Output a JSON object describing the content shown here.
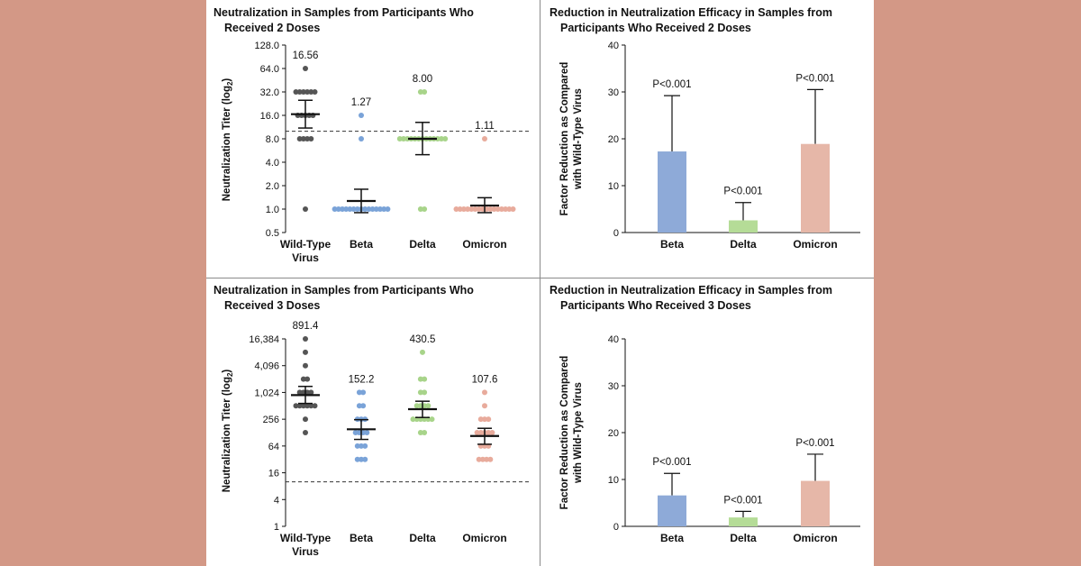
{
  "colors": {
    "wild_type": "#555555",
    "beta": "#7aa3d8",
    "delta": "#a8d48a",
    "omicron": "#e8ab9c",
    "bar_beta": "#8eaad8",
    "bar_delta": "#b5dc97",
    "bar_omicron": "#e6b7a8"
  },
  "chart_data": [
    {
      "type": "scatter",
      "title": [
        "Neutralization in Samples from Participants Who",
        "Received 2 Doses"
      ],
      "ylabel": "Neutralization Titer (log",
      "ylabel_sub": "2",
      "scale": "log2",
      "ylim": [
        0.5,
        128
      ],
      "ytick_values": [
        0.5,
        1,
        2,
        4,
        8,
        16,
        32,
        64,
        128
      ],
      "ytick_labels": [
        "0.5",
        "1.0",
        "2.0",
        "4.0",
        "8.0",
        "16.0",
        "32.0",
        "64.0",
        "128.0"
      ],
      "threshold": 10,
      "categories": [
        [
          "Wild-Type",
          "Virus"
        ],
        [
          "Beta"
        ],
        [
          "Delta"
        ],
        [
          "Omicron"
        ]
      ],
      "series": [
        {
          "key": "wild_type",
          "gmt": 16.56,
          "gmt_label": "16.56",
          "ci": [
            11,
            25
          ],
          "points": [
            64,
            32,
            32,
            32,
            32,
            32,
            32,
            16,
            16,
            16,
            16,
            16,
            8,
            8,
            8,
            8,
            1
          ]
        },
        {
          "key": "beta",
          "gmt": 1.27,
          "gmt_label": "1.27",
          "ci": [
            0.9,
            1.8
          ],
          "points": [
            16,
            8,
            1,
            1,
            1,
            1,
            1,
            1,
            1,
            1,
            1,
            1,
            1,
            1,
            1,
            1,
            1
          ]
        },
        {
          "key": "delta",
          "gmt": 8.0,
          "gmt_label": "8.00",
          "ci": [
            5,
            13
          ],
          "points": [
            32,
            32,
            8,
            8,
            8,
            8,
            8,
            8,
            8,
            8,
            8,
            8,
            8,
            8,
            8,
            1,
            1
          ]
        },
        {
          "key": "omicron",
          "gmt": 1.11,
          "gmt_label": "1.11",
          "ci": [
            0.9,
            1.4
          ],
          "points": [
            8,
            1,
            1,
            1,
            1,
            1,
            1,
            1,
            1,
            1,
            1,
            1,
            1,
            1,
            1,
            1,
            1
          ]
        }
      ]
    },
    {
      "type": "bar",
      "title": [
        "Reduction in Neutralization Efficacy in Samples from",
        "Participants Who Received 2 Doses"
      ],
      "ylabel": [
        "Factor Reduction as Compared",
        "with Wild-Type Virus"
      ],
      "ylim": [
        0,
        40
      ],
      "yticks": [
        0,
        10,
        20,
        30,
        40
      ],
      "categories": [
        "Beta",
        "Delta",
        "Omicron"
      ],
      "series": [
        {
          "key": "beta",
          "value": 17.3,
          "err_upper": 29.2,
          "label": "P<0.001"
        },
        {
          "key": "delta",
          "value": 2.6,
          "err_upper": 6.4,
          "label": "P<0.001"
        },
        {
          "key": "omicron",
          "value": 18.9,
          "err_upper": 30.5,
          "label": "P<0.001"
        }
      ]
    },
    {
      "type": "scatter",
      "title": [
        "Neutralization in Samples from Participants Who",
        "Received 3 Doses"
      ],
      "ylabel": "Neutralization Titer (log",
      "ylabel_sub": "2",
      "scale": "log2",
      "ylim": [
        1,
        16384
      ],
      "ytick_values": [
        1,
        4,
        16,
        64,
        256,
        1024,
        4096,
        16384
      ],
      "ytick_labels": [
        "1",
        "4",
        "16",
        "64",
        "256",
        "1,024",
        "4,096",
        "16,384"
      ],
      "threshold": 10,
      "categories": [
        [
          "Wild-Type",
          "Virus"
        ],
        [
          "Beta"
        ],
        [
          "Delta"
        ],
        [
          "Omicron"
        ]
      ],
      "series": [
        {
          "key": "wild_type",
          "gmt": 891.4,
          "gmt_label": "891.4",
          "ci": [
            580,
            1400
          ],
          "points": [
            16384,
            8192,
            4096,
            2048,
            2048,
            1024,
            1024,
            1024,
            1024,
            512,
            512,
            512,
            512,
            512,
            512,
            256,
            128
          ]
        },
        {
          "key": "beta",
          "gmt": 152.2,
          "gmt_label": "152.2",
          "ci": [
            90,
            250
          ],
          "points": [
            1024,
            1024,
            512,
            512,
            256,
            256,
            256,
            128,
            128,
            128,
            128,
            64,
            64,
            64,
            32,
            32,
            32
          ]
        },
        {
          "key": "delta",
          "gmt": 430.5,
          "gmt_label": "430.5",
          "ci": [
            280,
            650
          ],
          "points": [
            8192,
            2048,
            2048,
            1024,
            1024,
            512,
            512,
            512,
            512,
            256,
            256,
            256,
            256,
            256,
            256,
            128,
            128
          ]
        },
        {
          "key": "omicron",
          "gmt": 107.6,
          "gmt_label": "107.6",
          "ci": [
            70,
            160
          ],
          "points": [
            1024,
            512,
            256,
            256,
            256,
            128,
            128,
            128,
            128,
            128,
            64,
            64,
            64,
            32,
            32,
            32,
            32
          ]
        }
      ]
    },
    {
      "type": "bar",
      "title": [
        "Reduction in Neutralization Efficacy in Samples from",
        "Participants Who Received 3 Doses"
      ],
      "ylabel": [
        "Factor Reduction as Compared",
        "with Wild-Type Virus"
      ],
      "ylim": [
        0,
        40
      ],
      "yticks": [
        0,
        10,
        20,
        30,
        40
      ],
      "categories": [
        "Beta",
        "Delta",
        "Omicron"
      ],
      "series": [
        {
          "key": "beta",
          "value": 6.6,
          "err_upper": 11.3,
          "label": "P<0.001"
        },
        {
          "key": "delta",
          "value": 1.9,
          "err_upper": 3.2,
          "label": "P<0.001"
        },
        {
          "key": "omicron",
          "value": 9.7,
          "err_upper": 15.4,
          "label": "P<0.001"
        }
      ]
    }
  ]
}
